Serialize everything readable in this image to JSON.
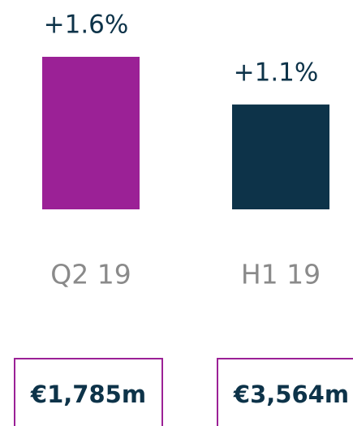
{
  "chart_data": {
    "type": "bar",
    "categories": [
      "Q2 19",
      "H1 19"
    ],
    "values": [
      1.6,
      1.1
    ],
    "value_labels": [
      "+1.6%",
      "+1.1%"
    ],
    "colors": [
      "#9b2196",
      "#0d3349"
    ],
    "ylim": [
      0,
      1.6
    ],
    "annotations": [
      "€1,785m",
      "€3,564m"
    ]
  }
}
